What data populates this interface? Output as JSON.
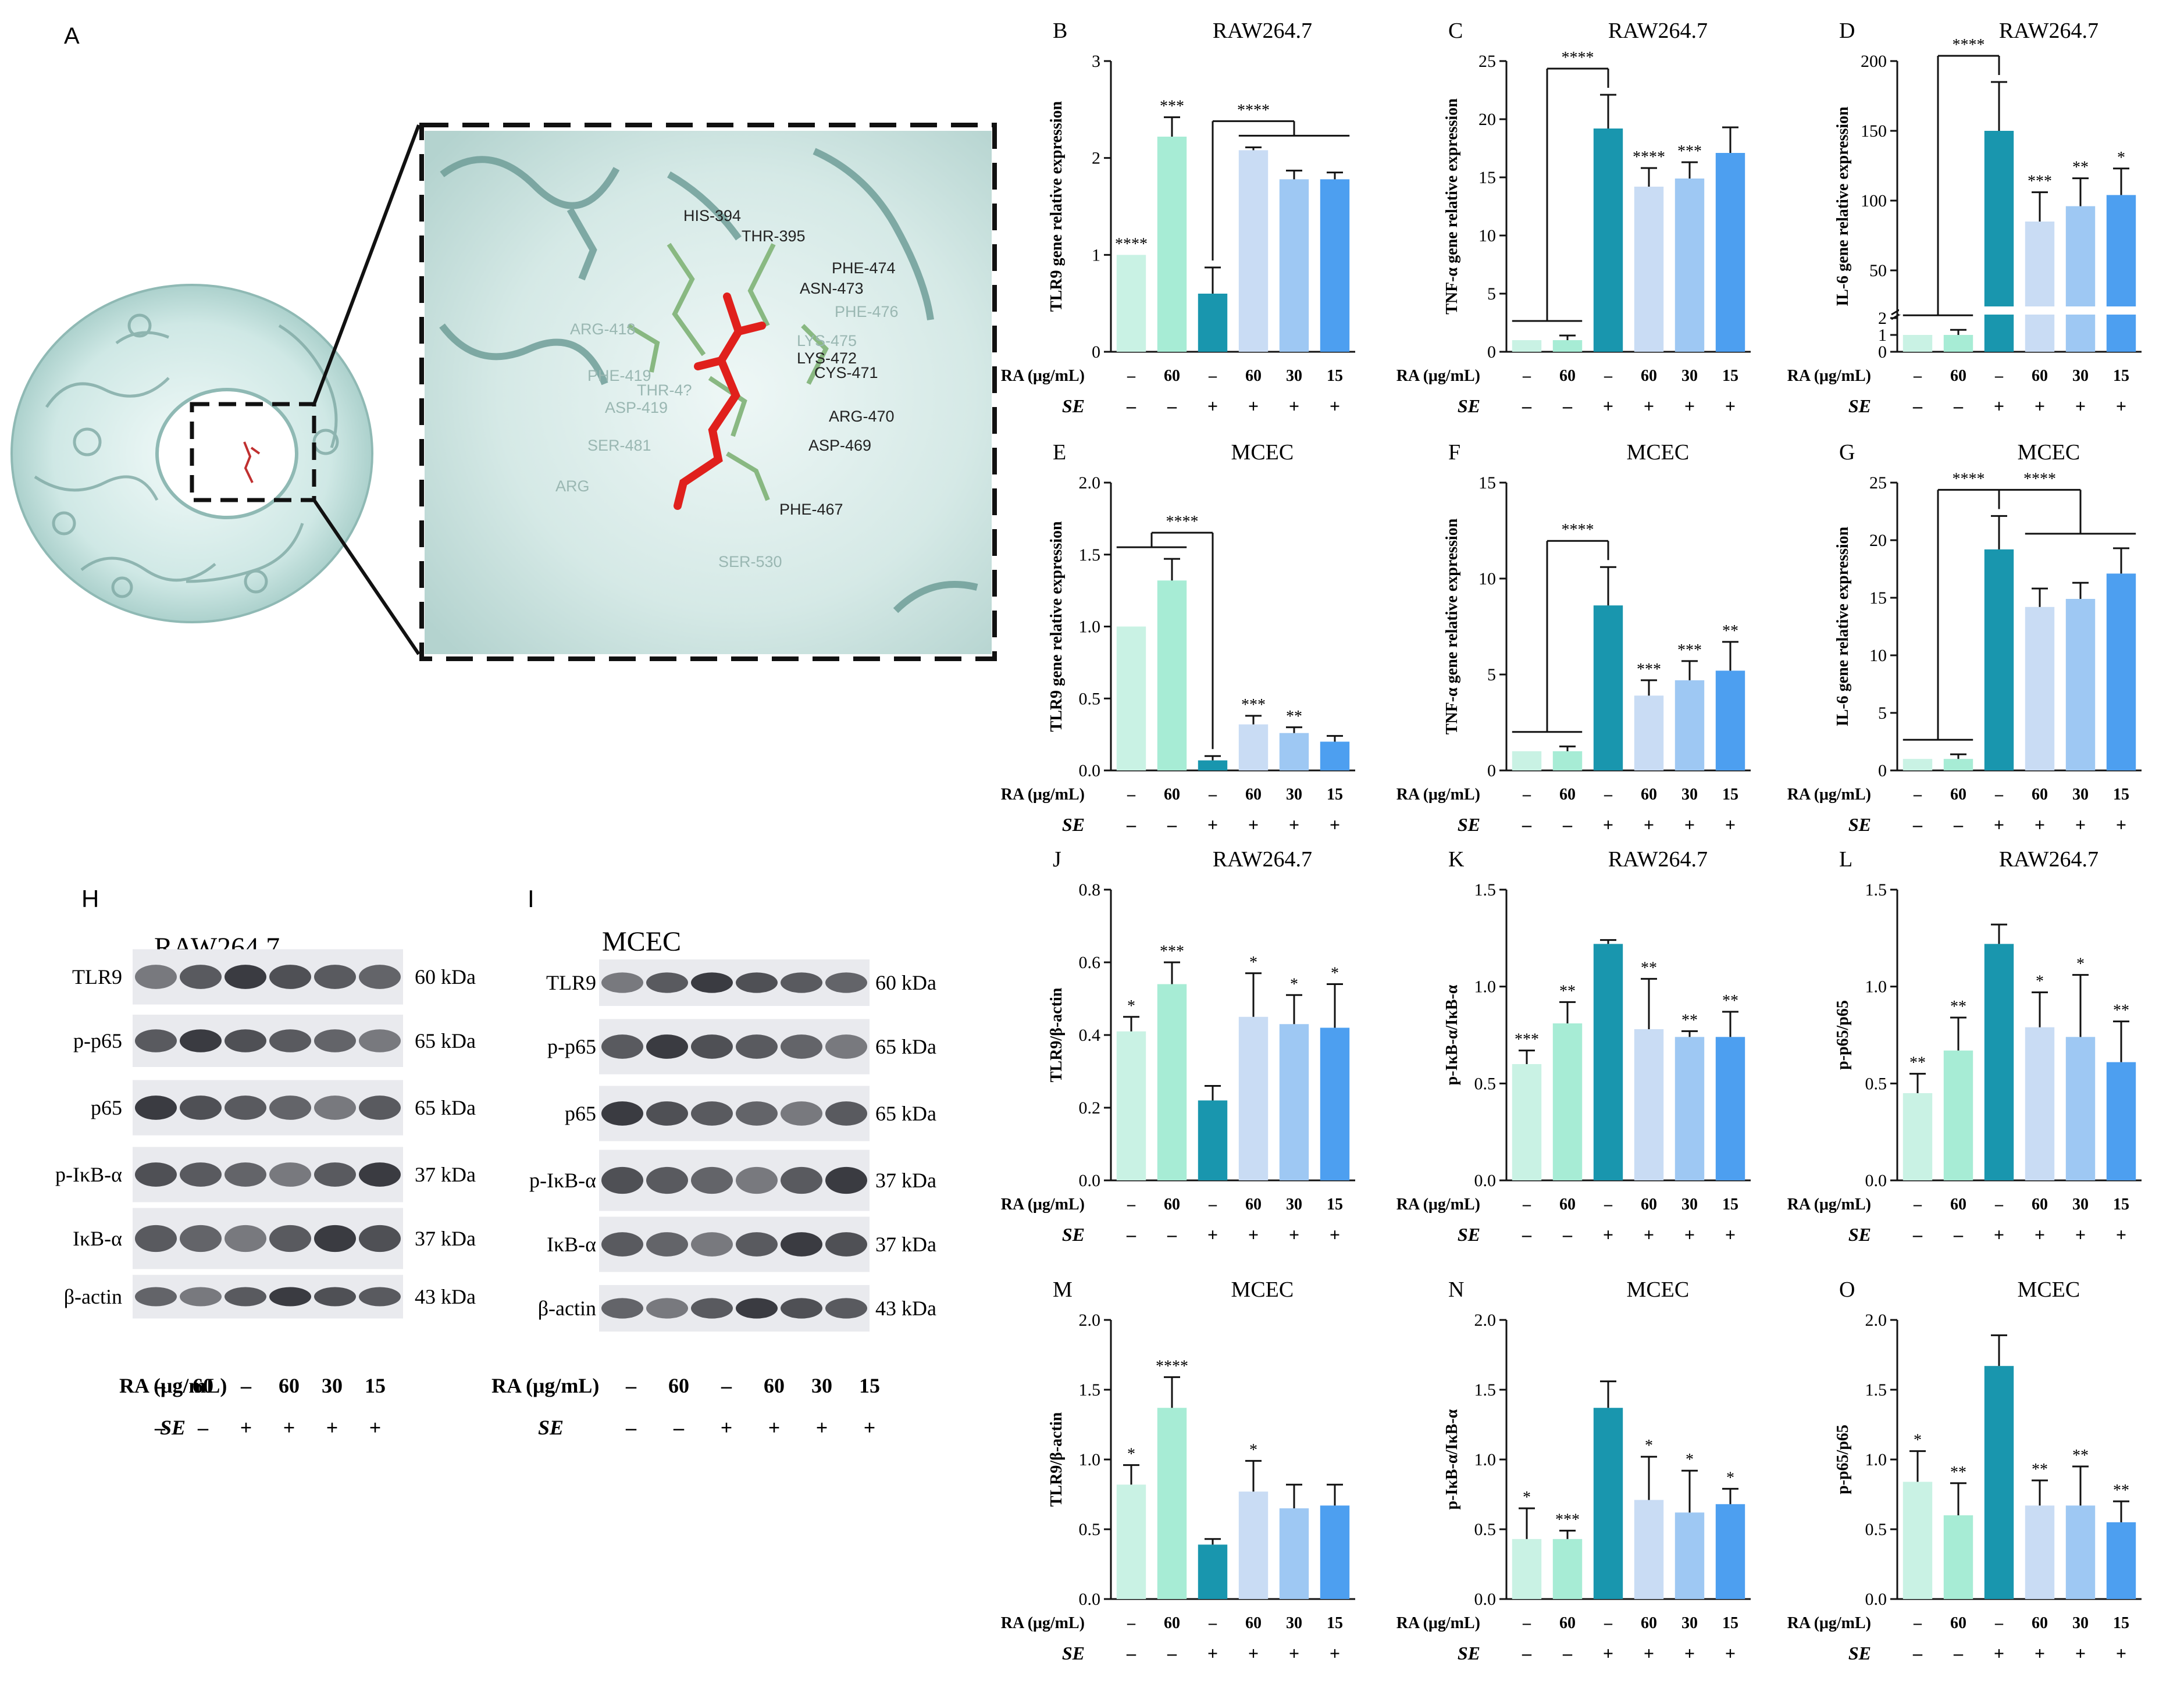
{
  "colors": {
    "c1": "#c9f2e4",
    "c2": "#a7ecd5",
    "c3": "#1996ae",
    "c4": "#c9dcf4",
    "c5": "#9ec8f3",
    "c6": "#4d9ff0"
  },
  "panel_A": {
    "label": "A",
    "residues": [
      "HIS-394",
      "THR-395",
      "PHE-474",
      "ASN-473",
      "PHE-476",
      "ARG-418",
      "LYS-475",
      "LYS-472",
      "CYS-471",
      "PHE-419",
      "THR-4?",
      "ASP-419",
      "ARG-470",
      "SER-481",
      "ASP-469",
      "SER-530",
      "PHE-467",
      "ARG"
    ]
  },
  "blots": [
    {
      "label": "H",
      "title": "RAW264.7",
      "rows": [
        {
          "name": "TLR9",
          "kda": "60 kDa"
        },
        {
          "name": "p-p65",
          "kda": "65 kDa"
        },
        {
          "name": "p65",
          "kda": "65 kDa"
        },
        {
          "name": "p-IκB-α",
          "kda": "37 kDa"
        },
        {
          "name": "IκB-α",
          "kda": "37 kDa"
        },
        {
          "name": "β-actin",
          "kda": "43 kDa"
        }
      ],
      "ra_label": "RA (μg/mL)",
      "ra": [
        "–",
        "60",
        "–",
        "60",
        "30",
        "15"
      ],
      "se_label": "SE",
      "se": [
        "–",
        "–",
        "+",
        "+",
        "+",
        "+"
      ]
    },
    {
      "label": "I",
      "title": "MCEC",
      "rows": [
        {
          "name": "TLR9",
          "kda": "60 kDa"
        },
        {
          "name": "p-p65",
          "kda": "65 kDa"
        },
        {
          "name": "p65",
          "kda": "65 kDa"
        },
        {
          "name": "p-IκB-α",
          "kda": "37 kDa"
        },
        {
          "name": "IκB-α",
          "kda": "37 kDa"
        },
        {
          "name": "β-actin",
          "kda": "43 kDa"
        }
      ],
      "ra_label": "RA (μg/mL)",
      "ra": [
        "–",
        "60",
        "–",
        "60",
        "30",
        "15"
      ],
      "se_label": "SE",
      "se": [
        "–",
        "–",
        "+",
        "+",
        "+",
        "+"
      ]
    }
  ],
  "chart_data": [
    {
      "label": "B",
      "type": "bar",
      "title": "RAW264.7",
      "ylabel": "TLR9 gene relative expression",
      "ylim": [
        0,
        3
      ],
      "yticks": [
        "0",
        "1",
        "2",
        "3"
      ],
      "values": [
        1.0,
        2.22,
        0.6,
        2.08,
        1.78,
        1.78
      ],
      "errors": [
        0,
        0.2,
        0.27,
        0.03,
        0.09,
        0.07
      ],
      "sig": [
        "****",
        "***",
        "",
        "",
        "",
        ""
      ],
      "bracket": {
        "text": "****",
        "from": 2,
        "to": [
          3,
          5
        ]
      },
      "ra_label": "RA (μg/mL)",
      "ra": [
        "–",
        "60",
        "–",
        "60",
        "30",
        "15"
      ],
      "se_label": "SE",
      "se": [
        "–",
        "–",
        "+",
        "+",
        "+",
        "+"
      ]
    },
    {
      "label": "C",
      "type": "bar",
      "title": "RAW264.7",
      "ylabel": "TNF-α gene relative expression",
      "ylim": [
        0,
        25
      ],
      "yticks": [
        "0",
        "5",
        "10",
        "15",
        "20",
        "25"
      ],
      "values": [
        1.0,
        1.0,
        19.2,
        14.2,
        14.9,
        17.1
      ],
      "errors": [
        0,
        0.4,
        2.9,
        1.6,
        1.4,
        2.2
      ],
      "sig": [
        "",
        "",
        "",
        "****",
        "***",
        ""
      ],
      "bracket": {
        "text": "****",
        "from": 2,
        "to": [
          0,
          1
        ]
      },
      "ra_label": "RA (μg/mL)",
      "ra": [
        "–",
        "60",
        "–",
        "60",
        "30",
        "15"
      ],
      "se_label": "SE",
      "se": [
        "–",
        "–",
        "+",
        "+",
        "+",
        "+"
      ]
    },
    {
      "label": "D",
      "type": "bar",
      "title": "RAW264.7",
      "ylabel": "IL-6 gene relative expression",
      "ylim": [
        0,
        200
      ],
      "yticks": [
        "0",
        "1",
        "2",
        "50",
        "100",
        "150",
        "200"
      ],
      "axis_break": true,
      "values": [
        1.0,
        1.0,
        150,
        85,
        96,
        104
      ],
      "errors": [
        0,
        0.3,
        35,
        21,
        20,
        19
      ],
      "sig": [
        "",
        "",
        "",
        "***",
        "**",
        "*"
      ],
      "bracket": {
        "text": "****",
        "from": 2,
        "to": [
          0,
          1
        ]
      },
      "ra_label": "RA (μg/mL)",
      "ra": [
        "–",
        "60",
        "–",
        "60",
        "30",
        "15"
      ],
      "se_label": "SE",
      "se": [
        "–",
        "–",
        "+",
        "+",
        "+",
        "+"
      ]
    },
    {
      "label": "E",
      "type": "bar",
      "title": "MCEC",
      "ylabel": "TLR9 gene relative expression",
      "ylim": [
        0,
        2.0
      ],
      "yticks": [
        "0.0",
        "0.5",
        "1.0",
        "1.5",
        "2.0"
      ],
      "values": [
        1.0,
        1.32,
        0.07,
        0.32,
        0.26,
        0.2
      ],
      "errors": [
        0,
        0.15,
        0.03,
        0.06,
        0.04,
        0.04
      ],
      "sig": [
        "",
        "",
        "",
        "***",
        "**",
        ""
      ],
      "bracket": {
        "text": "****",
        "from": 2,
        "to": [
          0,
          1
        ]
      },
      "ra_label": "RA (μg/mL)",
      "ra": [
        "–",
        "60",
        "–",
        "60",
        "30",
        "15"
      ],
      "se_label": "SE",
      "se": [
        "–",
        "–",
        "+",
        "+",
        "+",
        "+"
      ]
    },
    {
      "label": "F",
      "type": "bar",
      "title": "MCEC",
      "ylabel": "TNF-α gene relative expression",
      "ylim": [
        0,
        15
      ],
      "yticks": [
        "0",
        "5",
        "10",
        "15"
      ],
      "values": [
        1.0,
        1.0,
        8.6,
        3.9,
        4.7,
        5.2
      ],
      "errors": [
        0,
        0.25,
        2.0,
        0.8,
        1.0,
        1.5
      ],
      "sig": [
        "",
        "",
        "",
        "***",
        "***",
        "**"
      ],
      "bracket": {
        "text": "****",
        "from": 2,
        "to": [
          0,
          1
        ]
      },
      "ra_label": "RA (μg/mL)",
      "ra": [
        "–",
        "60",
        "–",
        "60",
        "30",
        "15"
      ],
      "se_label": "SE",
      "se": [
        "–",
        "–",
        "+",
        "+",
        "+",
        "+"
      ]
    },
    {
      "label": "G",
      "type": "bar",
      "title": "MCEC",
      "ylabel": "IL-6 gene relative expression",
      "ylim": [
        0,
        25
      ],
      "yticks": [
        "0",
        "5",
        "10",
        "15",
        "20",
        "25"
      ],
      "values": [
        1.0,
        1.0,
        19.2,
        14.2,
        14.9,
        17.1
      ],
      "errors": [
        0,
        0.4,
        2.9,
        1.6,
        1.4,
        2.2
      ],
      "sig": [
        "",
        "",
        "",
        "",
        "",
        ""
      ],
      "bracket": {
        "text": "****",
        "from": 2,
        "to": [
          0,
          1
        ]
      },
      "bracket2": {
        "text": "****",
        "from": 2,
        "to": [
          3,
          5
        ]
      },
      "ra_label": "RA (μg/mL)",
      "ra": [
        "–",
        "60",
        "–",
        "60",
        "30",
        "15"
      ],
      "se_label": "SE",
      "se": [
        "–",
        "–",
        "+",
        "+",
        "+",
        "+"
      ]
    },
    {
      "label": "J",
      "type": "bar",
      "title": "RAW264.7",
      "ylabel": "TLR9/β-actin",
      "ylim": [
        0,
        0.8
      ],
      "yticks": [
        "0.0",
        "0.2",
        "0.4",
        "0.6",
        "0.8"
      ],
      "values": [
        0.41,
        0.54,
        0.22,
        0.45,
        0.43,
        0.42
      ],
      "errors": [
        0.04,
        0.06,
        0.04,
        0.12,
        0.08,
        0.12
      ],
      "sig": [
        "*",
        "***",
        "",
        "*",
        "*",
        "*"
      ],
      "ra_label": "RA (μg/mL)",
      "ra": [
        "–",
        "60",
        "–",
        "60",
        "30",
        "15"
      ],
      "se_label": "SE",
      "se": [
        "–",
        "–",
        "+",
        "+",
        "+",
        "+"
      ]
    },
    {
      "label": "K",
      "type": "bar",
      "title": "RAW264.7",
      "ylabel": "p-IκB-α/IκB-α",
      "ylim": [
        0,
        1.5
      ],
      "yticks": [
        "0.0",
        "0.5",
        "1.0",
        "1.5"
      ],
      "values": [
        0.6,
        0.81,
        1.22,
        0.78,
        0.74,
        0.74
      ],
      "errors": [
        0.07,
        0.11,
        0.02,
        0.26,
        0.03,
        0.13
      ],
      "sig": [
        "***",
        "**",
        "",
        "**",
        "**",
        "**"
      ],
      "ra_label": "RA (μg/mL)",
      "ra": [
        "–",
        "60",
        "–",
        "60",
        "30",
        "15"
      ],
      "se_label": "SE",
      "se": [
        "–",
        "–",
        "+",
        "+",
        "+",
        "+"
      ]
    },
    {
      "label": "L",
      "type": "bar",
      "title": "RAW264.7",
      "ylabel": "p-p65/p65",
      "ylim": [
        0,
        1.5
      ],
      "yticks": [
        "0.0",
        "0.5",
        "1.0",
        "1.5"
      ],
      "values": [
        0.45,
        0.67,
        1.22,
        0.79,
        0.74,
        0.61
      ],
      "errors": [
        0.1,
        0.17,
        0.1,
        0.18,
        0.32,
        0.21
      ],
      "sig": [
        "**",
        "**",
        "",
        "*",
        "*",
        "**"
      ],
      "ra_label": "RA (μg/mL)",
      "ra": [
        "–",
        "60",
        "–",
        "60",
        "30",
        "15"
      ],
      "se_label": "SE",
      "se": [
        "–",
        "–",
        "+",
        "+",
        "+",
        "+"
      ]
    },
    {
      "label": "M",
      "type": "bar",
      "title": "MCEC",
      "ylabel": "TLR9/β-actin",
      "ylim": [
        0,
        2.0
      ],
      "yticks": [
        "0.0",
        "0.5",
        "1.0",
        "1.5",
        "2.0"
      ],
      "values": [
        0.82,
        1.37,
        0.39,
        0.77,
        0.65,
        0.67
      ],
      "errors": [
        0.14,
        0.22,
        0.04,
        0.22,
        0.17,
        0.15
      ],
      "sig": [
        "*",
        "****",
        "",
        "*",
        "",
        ""
      ],
      "ra_label": "RA (μg/mL)",
      "ra": [
        "–",
        "60",
        "–",
        "60",
        "30",
        "15"
      ],
      "se_label": "SE",
      "se": [
        "–",
        "–",
        "+",
        "+",
        "+",
        "+"
      ]
    },
    {
      "label": "N",
      "type": "bar",
      "title": "MCEC",
      "ylabel": "p-IκB-α/IκB-α",
      "ylim": [
        0,
        2.0
      ],
      "yticks": [
        "0.0",
        "0.5",
        "1.0",
        "1.5",
        "2.0"
      ],
      "values": [
        0.43,
        0.43,
        1.37,
        0.71,
        0.62,
        0.68
      ],
      "errors": [
        0.22,
        0.06,
        0.19,
        0.31,
        0.3,
        0.11
      ],
      "sig": [
        "*",
        "***",
        "",
        "*",
        "*",
        "*"
      ],
      "ra_label": "RA (μg/mL)",
      "ra": [
        "–",
        "60",
        "–",
        "60",
        "30",
        "15"
      ],
      "se_label": "SE",
      "se": [
        "–",
        "–",
        "+",
        "+",
        "+",
        "+"
      ]
    },
    {
      "label": "O",
      "type": "bar",
      "title": "MCEC",
      "ylabel": "p-p65/p65",
      "ylim": [
        0,
        2.0
      ],
      "yticks": [
        "0.0",
        "0.5",
        "1.0",
        "1.5",
        "2.0"
      ],
      "values": [
        0.84,
        0.6,
        1.67,
        0.67,
        0.67,
        0.55
      ],
      "errors": [
        0.22,
        0.23,
        0.22,
        0.18,
        0.28,
        0.15
      ],
      "sig": [
        "*",
        "**",
        "",
        "**",
        "**",
        "**"
      ],
      "ra_label": "RA (μg/mL)",
      "ra": [
        "–",
        "60",
        "–",
        "60",
        "30",
        "15"
      ],
      "se_label": "SE",
      "se": [
        "–",
        "–",
        "+",
        "+",
        "+",
        "+"
      ]
    }
  ]
}
